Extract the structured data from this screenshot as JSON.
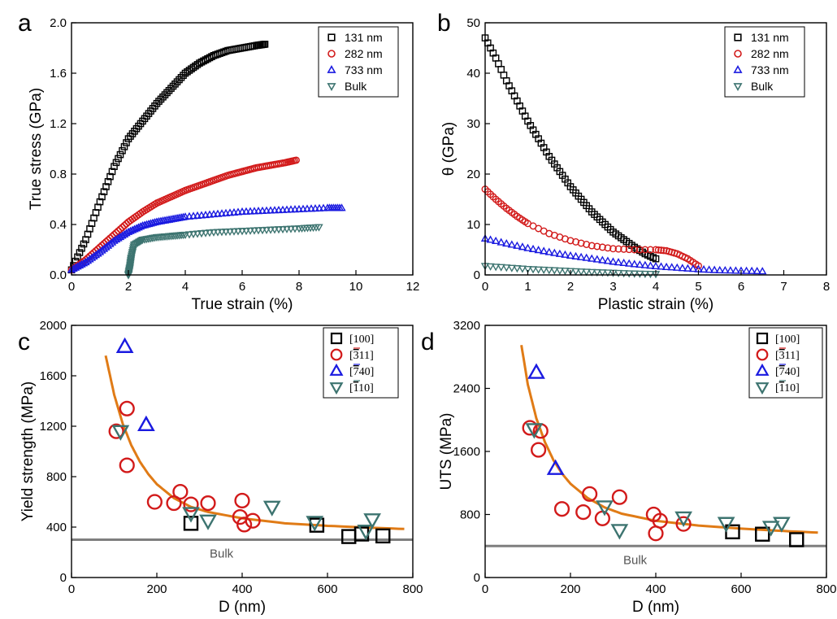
{
  "panels": {
    "a": "a",
    "b": "b",
    "c": "c",
    "d": "d"
  },
  "colors": {
    "131 nm": "#000000",
    "282 nm": "#d21a1a",
    "733 nm": "#1a1ae0",
    "Bulk": "#3d7470",
    "fit": "#e07b16",
    "bulk_line": "#7f7f7f"
  },
  "chart_data": [
    {
      "id": "a",
      "type": "scatter",
      "xlabel": "True strain (%)",
      "ylabel": "True stress (GPa)",
      "xlim": [
        0,
        12
      ],
      "ylim": [
        0,
        2.0
      ],
      "xticks": [
        "0",
        "2",
        "4",
        "6",
        "8",
        "10",
        "12"
      ],
      "yticks": [
        "0.0",
        "0.4",
        "0.8",
        "1.2",
        "1.6",
        "2.0"
      ],
      "legend_position": "top-right",
      "series": [
        {
          "name": "131 nm",
          "marker": "square",
          "x": [
            0,
            0.5,
            1,
            1.5,
            2,
            2.5,
            3,
            3.5,
            4,
            4.5,
            5,
            5.5,
            6,
            6.5,
            6.8
          ],
          "y": [
            0.04,
            0.28,
            0.58,
            0.86,
            1.08,
            1.22,
            1.36,
            1.48,
            1.6,
            1.68,
            1.74,
            1.78,
            1.8,
            1.82,
            1.83
          ]
        },
        {
          "name": "282 nm",
          "marker": "circle",
          "x": [
            0,
            0.5,
            1,
            1.5,
            2,
            2.5,
            3,
            3.5,
            4,
            4.5,
            5,
            5.5,
            6,
            6.5,
            7,
            7.5,
            7.9
          ],
          "y": [
            0.04,
            0.12,
            0.22,
            0.32,
            0.42,
            0.5,
            0.57,
            0.62,
            0.67,
            0.71,
            0.75,
            0.79,
            0.82,
            0.85,
            0.87,
            0.89,
            0.91
          ]
        },
        {
          "name": "733 nm",
          "marker": "triangle-up",
          "x": [
            0,
            0.5,
            1,
            1.5,
            2,
            2.5,
            3,
            3.5,
            4,
            5,
            6,
            7,
            8,
            9,
            9.5
          ],
          "y": [
            0.04,
            0.1,
            0.18,
            0.27,
            0.34,
            0.39,
            0.42,
            0.44,
            0.46,
            0.48,
            0.5,
            0.51,
            0.52,
            0.53,
            0.53
          ]
        },
        {
          "name": "Bulk",
          "marker": "triangle-down",
          "x": [
            2.0,
            2.05,
            2.1,
            2.2,
            2.5,
            3,
            3.5,
            4,
            5,
            6,
            7,
            8,
            8.7
          ],
          "y": [
            0.0,
            0.06,
            0.14,
            0.24,
            0.28,
            0.3,
            0.31,
            0.32,
            0.34,
            0.35,
            0.36,
            0.37,
            0.38
          ]
        }
      ]
    },
    {
      "id": "b",
      "type": "scatter",
      "xlabel": "Plastic strain (%)",
      "ylabel": "θ (GPa)",
      "xlim": [
        0,
        8
      ],
      "ylim": [
        0,
        50
      ],
      "xticks": [
        "0",
        "1",
        "2",
        "3",
        "4",
        "5",
        "6",
        "7",
        "8"
      ],
      "yticks": [
        "0",
        "10",
        "20",
        "30",
        "40",
        "50"
      ],
      "legend_position": "top-right",
      "series": [
        {
          "name": "131 nm",
          "marker": "square",
          "x": [
            0,
            0.25,
            0.5,
            0.75,
            1,
            1.25,
            1.5,
            1.75,
            2,
            2.25,
            2.5,
            2.75,
            3,
            3.25,
            3.5,
            3.75,
            4
          ],
          "y": [
            47,
            43,
            38.5,
            34.5,
            30.5,
            27,
            23.5,
            20.5,
            17.5,
            15,
            12.5,
            10.5,
            8.5,
            7,
            5.5,
            4.2,
            3.2
          ]
        },
        {
          "name": "282 nm",
          "marker": "circle",
          "x": [
            0,
            0.25,
            0.5,
            0.75,
            1,
            1.5,
            2,
            2.5,
            3,
            3.5,
            4,
            4.25,
            4.5,
            4.75,
            5
          ],
          "y": [
            17,
            15,
            13.2,
            11.6,
            10.2,
            8.2,
            6.8,
            5.8,
            5.2,
            5,
            5,
            4.8,
            4.2,
            3.2,
            1.8
          ]
        },
        {
          "name": "733 nm",
          "marker": "triangle-up",
          "x": [
            0,
            0.5,
            1,
            1.5,
            2,
            2.5,
            3,
            3.5,
            4,
            4.5,
            5,
            5.5,
            6,
            6.5
          ],
          "y": [
            7.2,
            6.2,
            5.3,
            4.5,
            3.8,
            3.2,
            2.6,
            2.1,
            1.7,
            1.4,
            1.1,
            0.9,
            0.8,
            0.7
          ]
        },
        {
          "name": "Bulk",
          "marker": "triangle-down",
          "x": [
            0,
            0.5,
            1,
            1.5,
            2,
            2.5,
            3,
            3.5,
            4
          ],
          "y": [
            1.8,
            1.5,
            1.2,
            1.0,
            0.8,
            0.6,
            0.45,
            0.3,
            0.2
          ]
        }
      ]
    },
    {
      "id": "c",
      "type": "scatter",
      "xlabel": "D (nm)",
      "ylabel": "Yield strength (MPa)",
      "xlim": [
        0,
        800
      ],
      "ylim": [
        0,
        2000
      ],
      "xticks": [
        "0",
        "200",
        "400",
        "600",
        "800"
      ],
      "yticks": [
        "0",
        "400",
        "800",
        "1200",
        "1600",
        "2000"
      ],
      "legend_position": "top-right",
      "bulk_level": 300,
      "bulk_label": "Bulk",
      "fit": {
        "x": [
          80,
          100,
          120,
          140,
          160,
          180,
          200,
          240,
          280,
          320,
          400,
          500,
          600,
          700,
          780
        ],
        "y": [
          1760,
          1450,
          1220,
          1050,
          920,
          820,
          740,
          630,
          560,
          520,
          470,
          430,
          410,
          395,
          385
        ]
      },
      "series": [
        {
          "name": "[100]",
          "marker": "square",
          "x": [
            280,
            575,
            650,
            680,
            730
          ],
          "y": [
            430,
            415,
            325,
            345,
            330
          ]
        },
        {
          "name": "[311]",
          "marker": "circle",
          "x": [
            105,
            130,
            130,
            195,
            240,
            255,
            280,
            320,
            395,
            400,
            405,
            425
          ],
          "y": [
            1160,
            1340,
            890,
            600,
            590,
            680,
            580,
            590,
            480,
            610,
            420,
            450
          ]
        },
        {
          "name": "[740]",
          "marker": "triangle-up",
          "x": [
            125,
            175
          ],
          "y": [
            1830,
            1210
          ]
        },
        {
          "name": "[110]",
          "marker": "triangle-down",
          "x": [
            115,
            280,
            320,
            470,
            570,
            690,
            705
          ],
          "y": [
            1160,
            510,
            450,
            560,
            440,
            370,
            460
          ]
        }
      ],
      "legend_labels": [
        {
          "pre": "[",
          "bar": "",
          "post": "100]"
        },
        {
          "pre": "[",
          "bar": "3",
          "post": "11]"
        },
        {
          "pre": "[",
          "bar": "7",
          "post": "40]"
        },
        {
          "pre": "[",
          "bar": "1",
          "post": "10]"
        }
      ]
    },
    {
      "id": "d",
      "type": "scatter",
      "xlabel": "D (nm)",
      "ylabel": "UTS (MPa)",
      "xlim": [
        0,
        800
      ],
      "ylim": [
        0,
        3200
      ],
      "xticks": [
        "0",
        "200",
        "400",
        "600",
        "800"
      ],
      "yticks": [
        "0",
        "800",
        "1600",
        "2400",
        "3200"
      ],
      "legend_position": "top-right",
      "bulk_level": 400,
      "bulk_label": "Bulk",
      "fit": {
        "x": [
          85,
          100,
          120,
          140,
          160,
          180,
          200,
          240,
          280,
          320,
          400,
          500,
          600,
          700,
          780
        ],
        "y": [
          2950,
          2450,
          2020,
          1720,
          1490,
          1320,
          1190,
          1010,
          890,
          810,
          720,
          660,
          620,
          590,
          570
        ]
      },
      "series": [
        {
          "name": "[100]",
          "marker": "square",
          "x": [
            580,
            650,
            730
          ],
          "y": [
            580,
            550,
            480
          ]
        },
        {
          "name": "[311]",
          "marker": "circle",
          "x": [
            105,
            130,
            125,
            180,
            230,
            245,
            275,
            315,
            395,
            400,
            410,
            465
          ],
          "y": [
            1900,
            1860,
            1620,
            870,
            830,
            1060,
            750,
            1020,
            800,
            560,
            720,
            680
          ]
        },
        {
          "name": "[740]",
          "marker": "triangle-up",
          "x": [
            120,
            165
          ],
          "y": [
            2600,
            1380
          ]
        },
        {
          "name": "[110]",
          "marker": "triangle-down",
          "x": [
            115,
            280,
            315,
            465,
            565,
            670,
            695
          ],
          "y": [
            1880,
            900,
            600,
            760,
            690,
            640,
            690
          ]
        }
      ],
      "legend_labels": [
        {
          "pre": "[",
          "bar": "",
          "post": "100]"
        },
        {
          "pre": "[",
          "bar": "3",
          "post": "11]"
        },
        {
          "pre": "[",
          "bar": "7",
          "post": "40]"
        },
        {
          "pre": "[",
          "bar": "1",
          "post": "10]"
        }
      ]
    }
  ]
}
